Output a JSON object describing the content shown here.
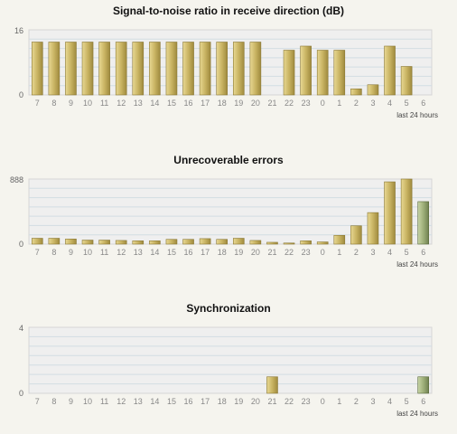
{
  "chart_data": [
    {
      "type": "bar",
      "title": "Signal-to-noise ratio in receive direction (dB)",
      "xlabel": "last 24 hours",
      "ylabel": "",
      "ylim": [
        0,
        16
      ],
      "ytick_labels": [
        "16",
        "0"
      ],
      "categories": [
        "7",
        "8",
        "9",
        "10",
        "11",
        "12",
        "13",
        "14",
        "15",
        "16",
        "17",
        "18",
        "19",
        "20",
        "21",
        "22",
        "23",
        "0",
        "1",
        "2",
        "3",
        "4",
        "5",
        "6"
      ],
      "values": [
        13,
        13,
        13,
        13,
        13,
        13,
        13,
        13,
        13,
        13,
        13,
        13,
        13,
        13,
        0,
        11,
        12,
        11,
        11,
        1.5,
        2.5,
        12,
        7,
        0
      ],
      "highlight_index": null,
      "colors": {
        "bar": "#c9b463",
        "bar_highlight": "#9fb07a",
        "plot_bg": "#efefef"
      }
    },
    {
      "type": "bar",
      "title": "Unrecoverable errors",
      "xlabel": "last 24 hours",
      "ylabel": "",
      "ylim": [
        0,
        888
      ],
      "ytick_labels": [
        "888",
        "0"
      ],
      "categories": [
        "7",
        "8",
        "9",
        "10",
        "11",
        "12",
        "13",
        "14",
        "15",
        "16",
        "17",
        "18",
        "19",
        "20",
        "21",
        "22",
        "23",
        "0",
        "1",
        "2",
        "3",
        "4",
        "5",
        "6"
      ],
      "values": [
        80,
        80,
        70,
        55,
        55,
        50,
        45,
        45,
        65,
        65,
        75,
        65,
        80,
        50,
        25,
        15,
        45,
        30,
        120,
        250,
        430,
        850,
        888,
        580
      ],
      "highlight_index": 23,
      "colors": {
        "bar": "#c9b463",
        "bar_highlight": "#9fb07a",
        "plot_bg": "#efefef"
      }
    },
    {
      "type": "bar",
      "title": "Synchronization",
      "xlabel": "last 24 hours",
      "ylabel": "",
      "ylim": [
        0,
        4
      ],
      "ytick_labels": [
        "4",
        "0"
      ],
      "categories": [
        "7",
        "8",
        "9",
        "10",
        "11",
        "12",
        "13",
        "14",
        "15",
        "16",
        "17",
        "18",
        "19",
        "20",
        "21",
        "22",
        "23",
        "0",
        "1",
        "2",
        "3",
        "4",
        "5",
        "6"
      ],
      "values": [
        0,
        0,
        0,
        0,
        0,
        0,
        0,
        0,
        0,
        0,
        0,
        0,
        0,
        0,
        1,
        0,
        0,
        0,
        0,
        0,
        0,
        0,
        0,
        1
      ],
      "highlight_index": 23,
      "colors": {
        "bar": "#c9b463",
        "bar_highlight": "#9fb07a",
        "plot_bg": "#efefef"
      }
    }
  ]
}
